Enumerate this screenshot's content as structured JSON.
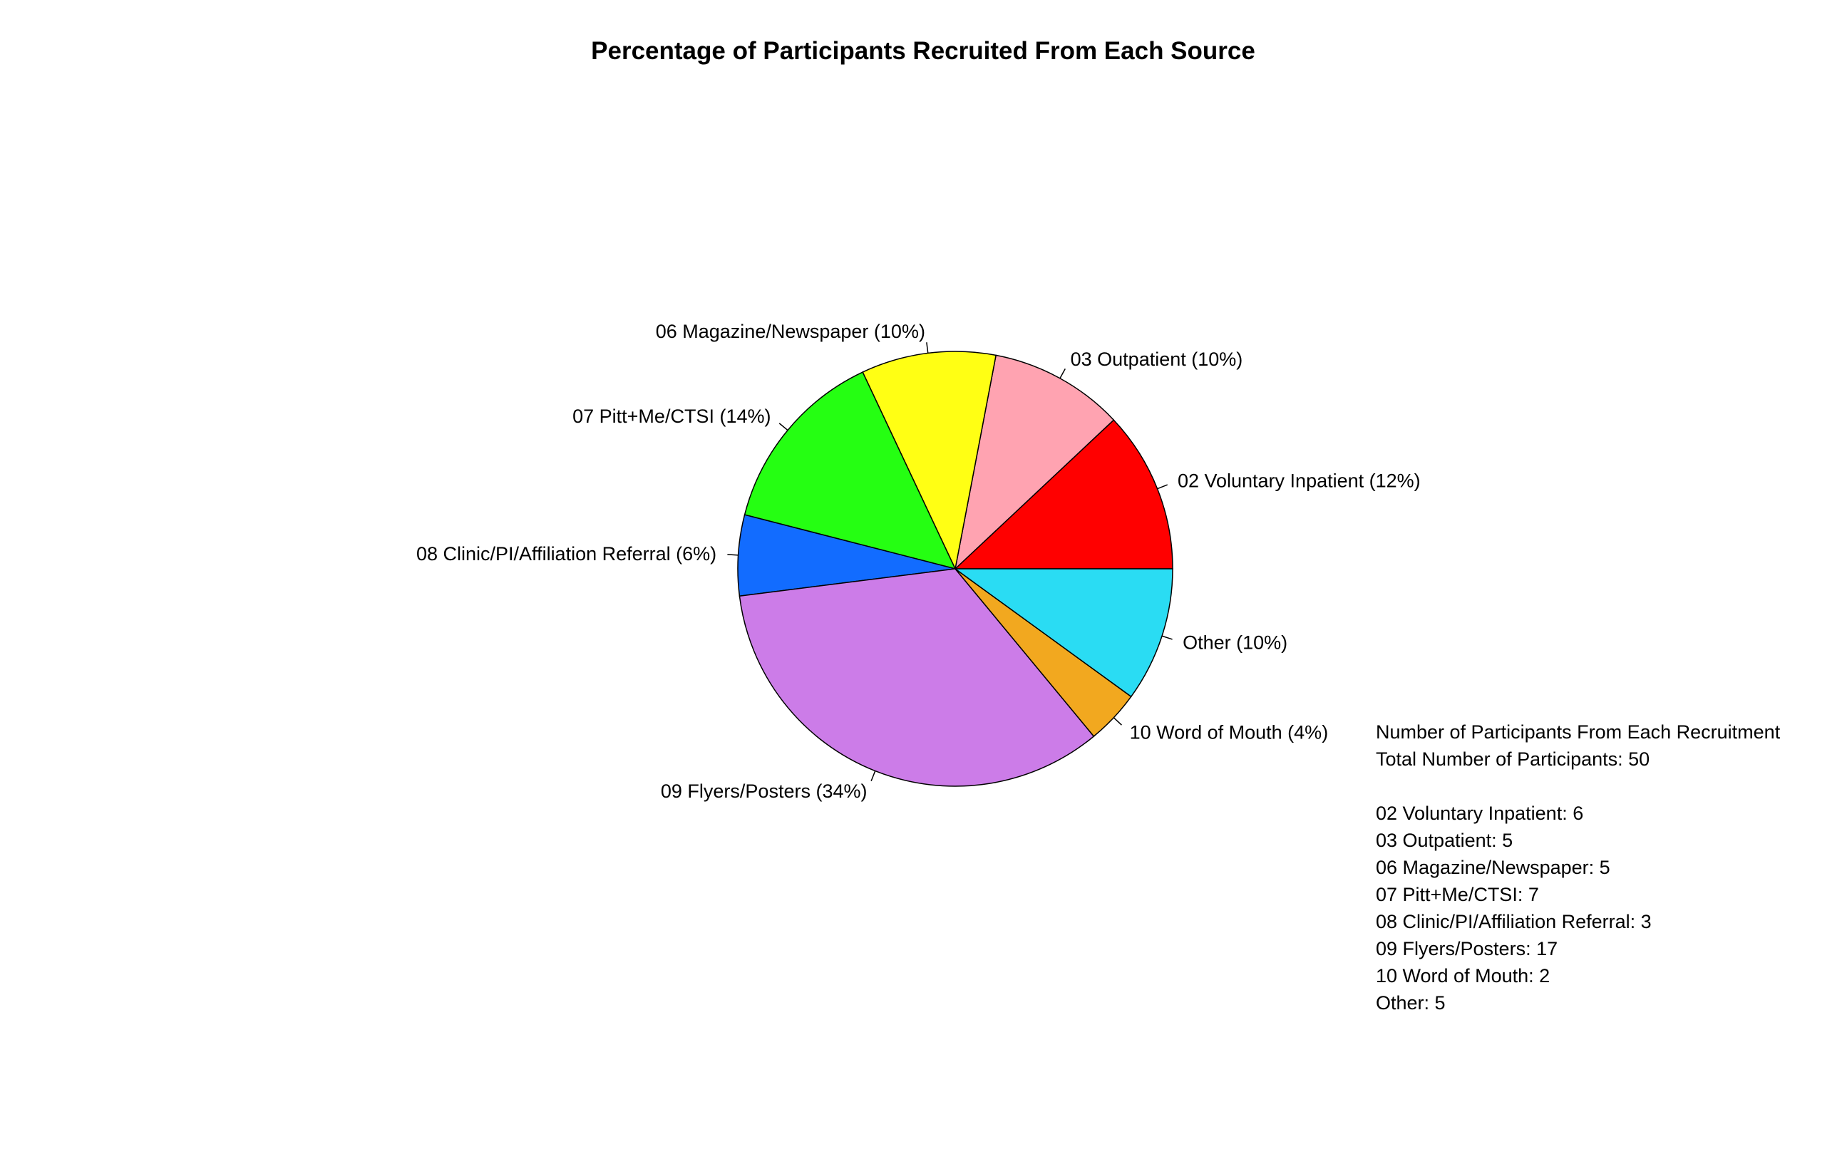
{
  "chart_data": {
    "type": "pie",
    "title": "Percentage of Participants Recruited From Each Source",
    "slices": [
      {
        "label": "02 Voluntary Inpatient (12%)",
        "value": 6,
        "color": "#ff0000"
      },
      {
        "label": "03 Outpatient (10%)",
        "value": 5,
        "color": "#ffa3b1"
      },
      {
        "label": "06 Magazine/Newspaper (10%)",
        "value": 5,
        "color": "#ffff14"
      },
      {
        "label": "07 Pitt+Me/CTSI (14%)",
        "value": 7,
        "color": "#25ff12"
      },
      {
        "label": "08 Clinic/PI/Affiliation Referral (6%)",
        "value": 3,
        "color": "#126cff"
      },
      {
        "label": "09 Flyers/Posters (34%)",
        "value": 17,
        "color": "#cc7ce8"
      },
      {
        "label": "10 Word of Mouth (4%)",
        "value": 2,
        "color": "#f2a81f"
      },
      {
        "label": "Other (10%)",
        "value": 5,
        "color": "#2adcf3"
      }
    ],
    "direction": "counterclockwise",
    "start": "3 o'clock"
  },
  "summary": {
    "heading": "Number of Participants From Each Recruitment",
    "total": "Total Number of Participants: 50",
    "lines": [
      "02 Voluntary Inpatient: 6",
      "03 Outpatient: 5",
      "06 Magazine/Newspaper: 5",
      "07 Pitt+Me/CTSI: 7",
      "08 Clinic/PI/Affiliation Referral: 3",
      "09 Flyers/Posters: 17",
      "10 Word of Mouth: 2",
      "Other: 5"
    ]
  }
}
